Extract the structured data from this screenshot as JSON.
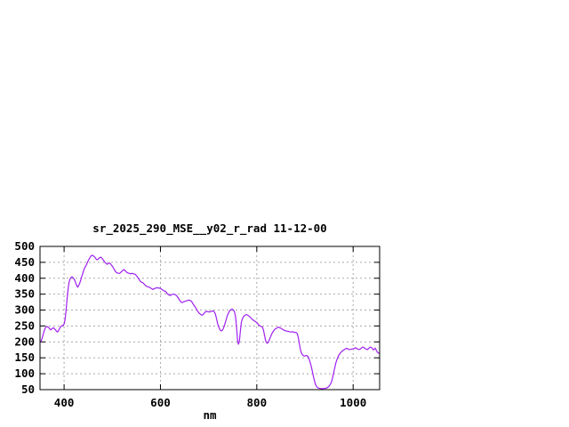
{
  "window": {
    "background": "#ffffff"
  },
  "chart_data": {
    "type": "line",
    "title": "sr_2025_290_MSE__y02_r_rad 11-12-00",
    "xlabel": "nm",
    "ylabel": "",
    "xlim": [
      350,
      1055
    ],
    "ylim": [
      50,
      500
    ],
    "x_ticks": [
      400,
      600,
      800,
      1000
    ],
    "y_ticks": [
      50,
      100,
      150,
      200,
      250,
      300,
      350,
      400,
      450,
      500
    ],
    "grid": true,
    "legend": "none",
    "colors": {
      "line": "#a020f0",
      "grid": "#a8a8a8",
      "axis": "#000000",
      "text": "#000000",
      "background": "#ffffff"
    },
    "series": [
      {
        "name": "sr_2025_290_MSE__y02_r_rad",
        "color": "#a020f0",
        "x_start": 350,
        "x_step": 2,
        "values": [
          200,
          202,
          210,
          221,
          231,
          240,
          246,
          248,
          247,
          245,
          241,
          238,
          240,
          243,
          244,
          241,
          238,
          234,
          231,
          234,
          240,
          246,
          249,
          251,
          252,
          256,
          270,
          298,
          330,
          362,
          385,
          396,
          402,
          404,
          403,
          399,
          394,
          386,
          377,
          372,
          376,
          383,
          391,
          402,
          412,
          421,
          430,
          436,
          441,
          448,
          455,
          461,
          466,
          470,
          472,
          471,
          469,
          466,
          461,
          458,
          459,
          462,
          465,
          466,
          464,
          460,
          456,
          451,
          448,
          445,
          444,
          446,
          448,
          446,
          442,
          438,
          433,
          428,
          423,
          419,
          417,
          416,
          415,
          416,
          419,
          422,
          425,
          427,
          425,
          422,
          419,
          417,
          416,
          415,
          414,
          415,
          415,
          414,
          413,
          412,
          408,
          404,
          400,
          396,
          391,
          388,
          387,
          385,
          382,
          379,
          376,
          374,
          373,
          372,
          371,
          369,
          367,
          365,
          366,
          368,
          369,
          370,
          370,
          369,
          369,
          368,
          366,
          364,
          362,
          360,
          359,
          356,
          352,
          349,
          347,
          346,
          347,
          349,
          350,
          350,
          349,
          347,
          344,
          340,
          335,
          331,
          327,
          324,
          324,
          326,
          327,
          328,
          329,
          330,
          331,
          331,
          330,
          328,
          324,
          319,
          314,
          310,
          305,
          300,
          295,
          291,
          288,
          286,
          284,
          285,
          288,
          292,
          295,
          296,
          295,
          294,
          294,
          295,
          296,
          297,
          297,
          294,
          288,
          276,
          262,
          250,
          243,
          237,
          235,
          236,
          240,
          248,
          258,
          268,
          278,
          287,
          293,
          298,
          301,
          303,
          302,
          299,
          293,
          278,
          245,
          205,
          192,
          203,
          235,
          262,
          273,
          278,
          282,
          284,
          286,
          285,
          283,
          281,
          278,
          275,
          272,
          269,
          267,
          265,
          263,
          261,
          257,
          253,
          251,
          249,
          248,
          246,
          237,
          221,
          206,
          198,
          196,
          199,
          206,
          214,
          221,
          228,
          233,
          237,
          240,
          242,
          244,
          246,
          246,
          244,
          243,
          241,
          239,
          237,
          236,
          235,
          234,
          233,
          233,
          232,
          231,
          231,
          232,
          231,
          230,
          230,
          229,
          226,
          216,
          198,
          180,
          168,
          161,
          158,
          156,
          156,
          157,
          157,
          154,
          149,
          140,
          129,
          117,
          102,
          88,
          76,
          66,
          60,
          57,
          55,
          54,
          53,
          53,
          53,
          53,
          54,
          54,
          55,
          56,
          58,
          61,
          65,
          71,
          79,
          91,
          105,
          120,
          133,
          143,
          151,
          157,
          162,
          166,
          169,
          172,
          174,
          176,
          178,
          180,
          179,
          177,
          176,
          176,
          177,
          178,
          178,
          179,
          181,
          181,
          179,
          177,
          176,
          177,
          179,
          182,
          184,
          183,
          180,
          178,
          177,
          176,
          179,
          182,
          184,
          182,
          179,
          175,
          177,
          180,
          174,
          168,
          166,
          163
        ]
      }
    ]
  }
}
